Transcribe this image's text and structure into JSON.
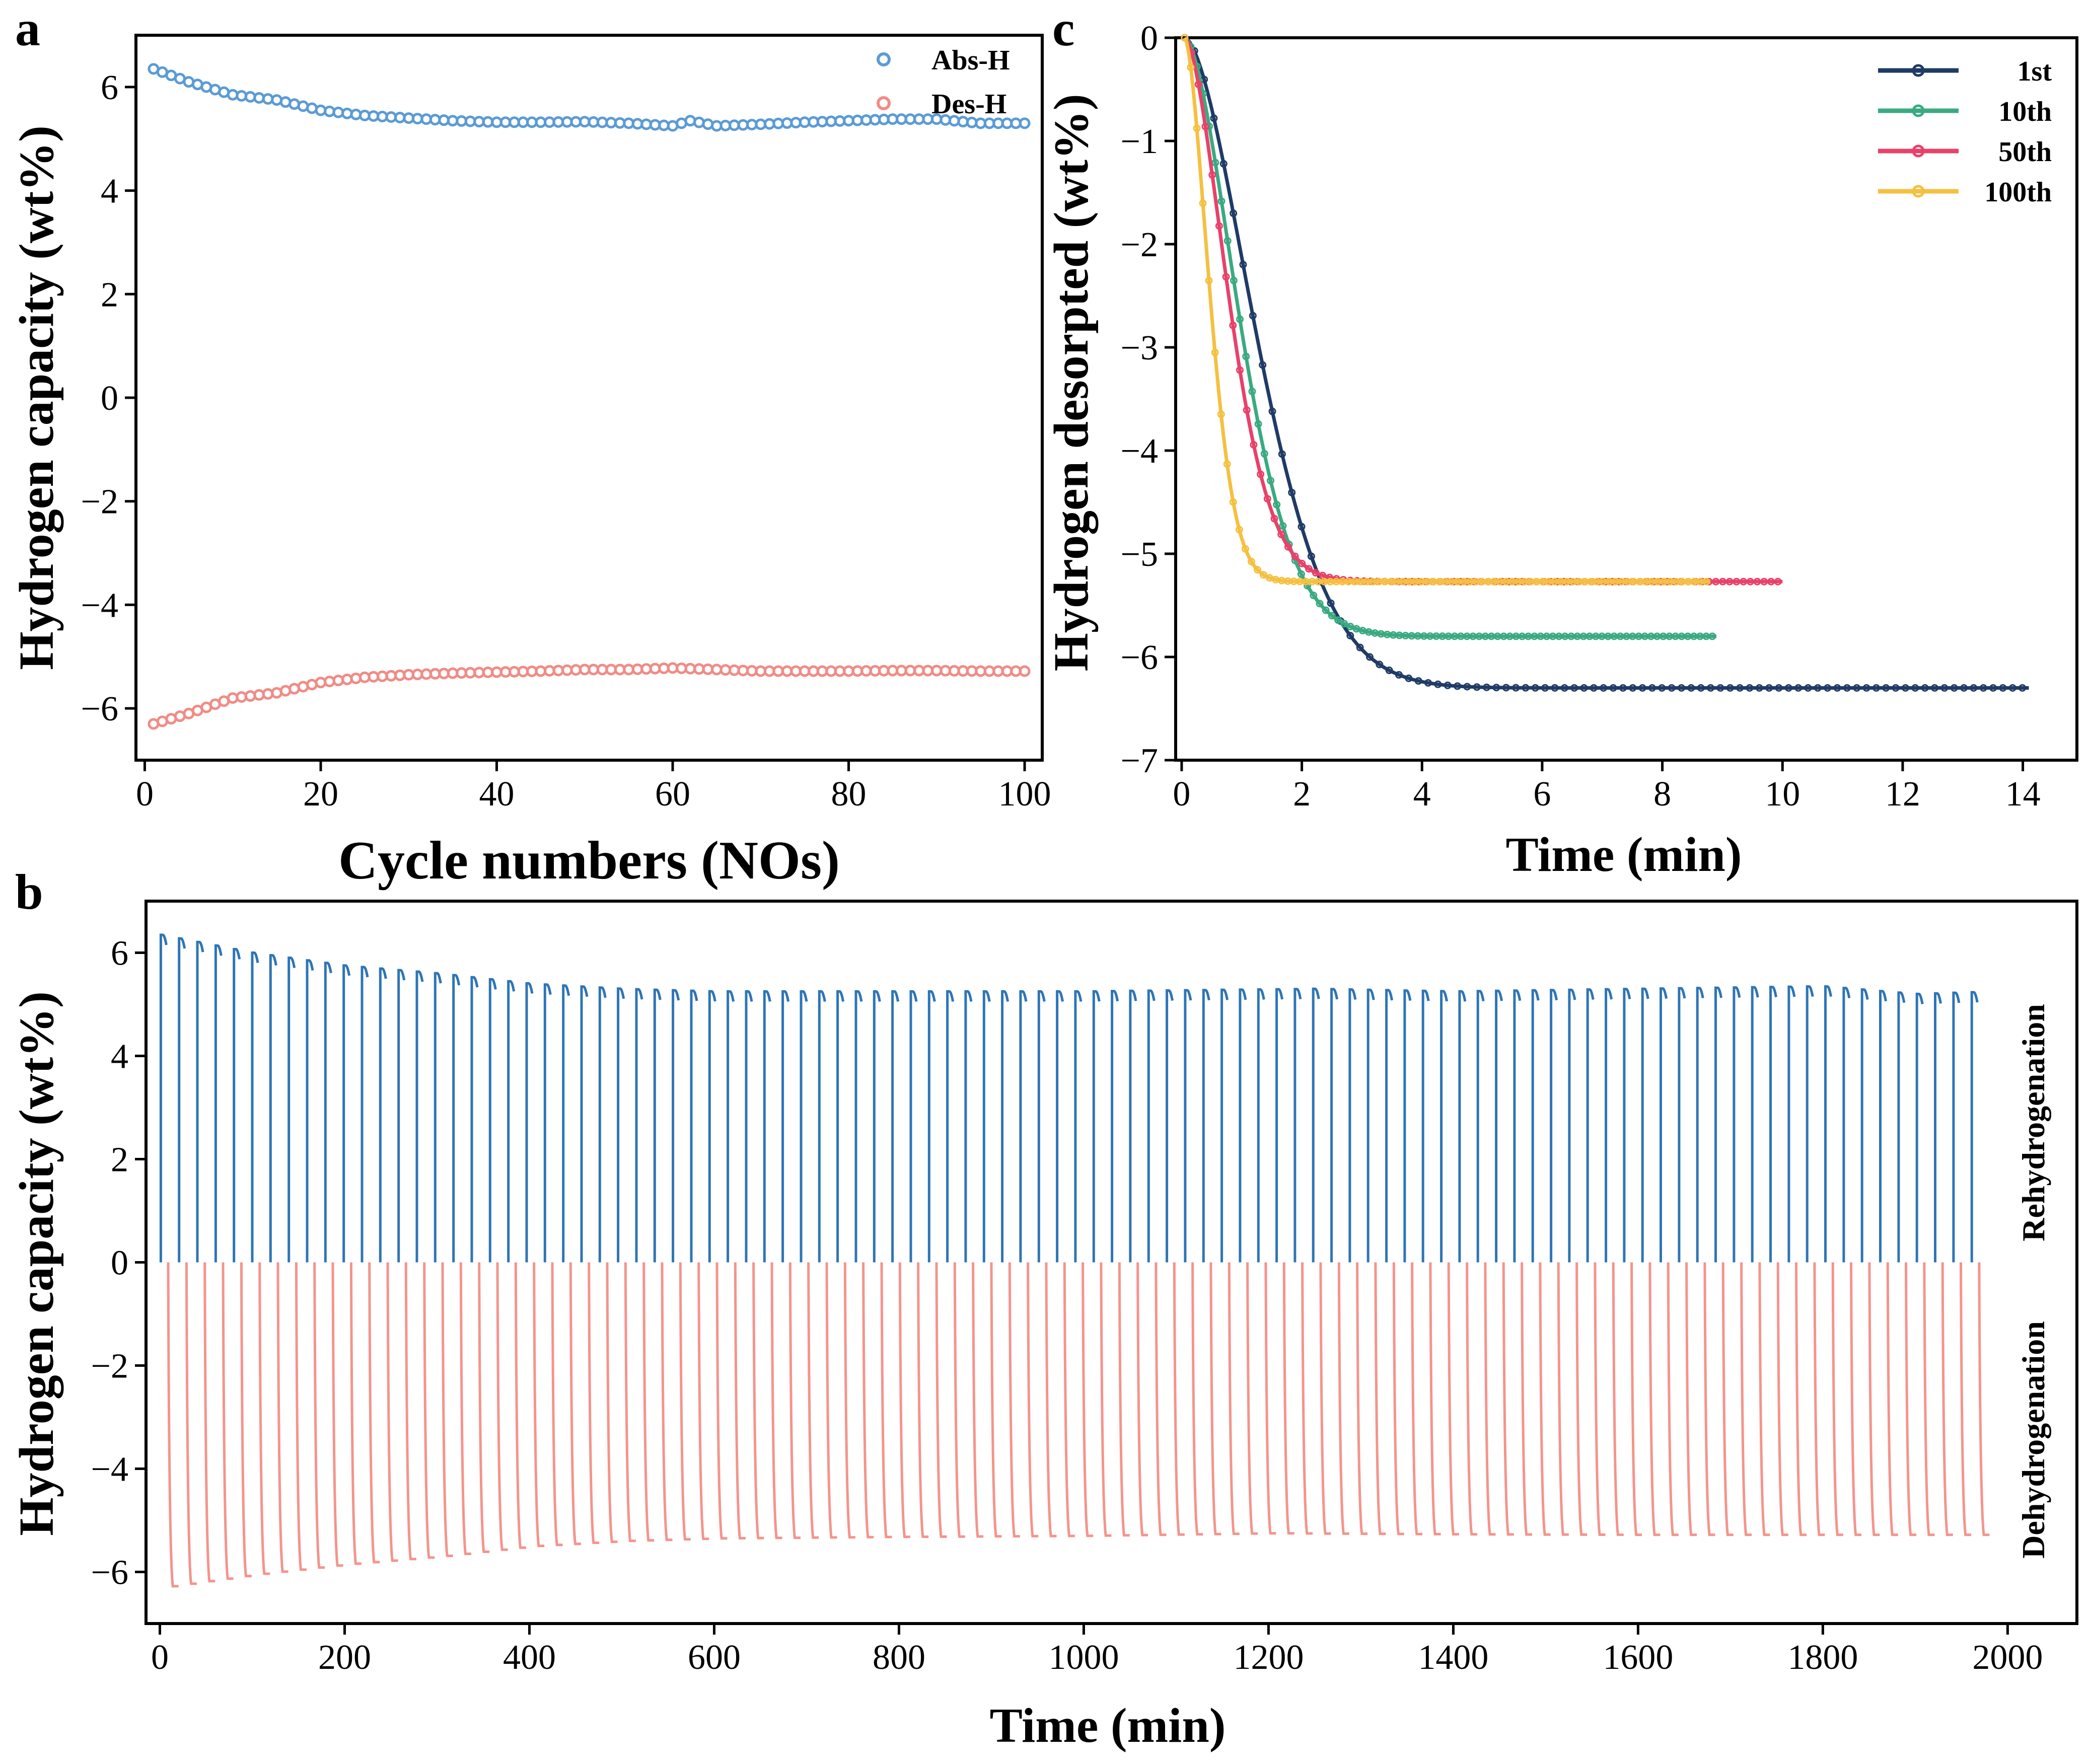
{
  "figure": {
    "panels": [
      "a",
      "b",
      "c"
    ]
  },
  "colors": {
    "abs": "#5b9bd5",
    "des": "#f08c86",
    "rehydro": "#2e75b6",
    "dehydro": "#f4948c",
    "c1st": "#1f3b66",
    "c10th": "#3aaa80",
    "c50th": "#e8416a",
    "c100th": "#f5c040"
  },
  "chart_data": [
    {
      "panel": "a",
      "type": "scatter",
      "xlabel": "Cycle numbers (NOs)",
      "ylabel": "Hydrogen capacity (wt%)",
      "xlim": [
        -1,
        102
      ],
      "ylim": [
        -7,
        7
      ],
      "xticks": [
        "0",
        "20",
        "40",
        "60",
        "80",
        "100"
      ],
      "yticks": [
        "−6",
        "−4",
        "−2",
        "0",
        "2",
        "4",
        "6"
      ],
      "series": [
        {
          "name": "Abs-H",
          "x_points": [
            1,
            5,
            10,
            15,
            20,
            25,
            30,
            35,
            40,
            45,
            50,
            55,
            60,
            62,
            65,
            70,
            75,
            80,
            85,
            90,
            95,
            100
          ],
          "values": [
            6.35,
            6.1,
            5.85,
            5.75,
            5.55,
            5.45,
            5.4,
            5.35,
            5.32,
            5.32,
            5.33,
            5.3,
            5.25,
            5.35,
            5.25,
            5.28,
            5.32,
            5.35,
            5.38,
            5.38,
            5.3,
            5.3
          ]
        },
        {
          "name": "Des-H",
          "x_points": [
            1,
            5,
            10,
            15,
            20,
            25,
            30,
            35,
            40,
            45,
            50,
            55,
            60,
            65,
            70,
            75,
            80,
            85,
            90,
            95,
            100
          ],
          "values": [
            -6.3,
            -6.1,
            -5.8,
            -5.7,
            -5.5,
            -5.4,
            -5.35,
            -5.32,
            -5.3,
            -5.28,
            -5.25,
            -5.25,
            -5.22,
            -5.25,
            -5.28,
            -5.28,
            -5.28,
            -5.27,
            -5.27,
            -5.28,
            -5.28
          ]
        }
      ]
    },
    {
      "panel": "b",
      "type": "line",
      "xlabel": "Time (min)",
      "ylabel": "Hydrogen capacity (wt%)",
      "xlim": [
        -15,
        2075
      ],
      "ylim": [
        -7,
        7
      ],
      "xticks": [
        "0",
        "200",
        "400",
        "600",
        "800",
        "1000",
        "1200",
        "1400",
        "1600",
        "1800",
        "2000"
      ],
      "yticks": [
        "−6",
        "−4",
        "−2",
        "0",
        "2",
        "4",
        "6"
      ],
      "cycles": 100,
      "cycle_period_min": 19.8,
      "series": [
        {
          "name": "Rehydrogenation",
          "x_points": [
            0,
            100,
            200,
            300,
            400,
            500,
            600,
            800,
            1000,
            1250,
            1400,
            1600,
            1800,
            1900,
            1990
          ],
          "values": [
            6.35,
            6.0,
            5.75,
            5.6,
            5.4,
            5.3,
            5.25,
            5.25,
            5.25,
            5.3,
            5.25,
            5.3,
            5.35,
            5.2,
            5.25
          ]
        },
        {
          "name": "Dehydrogenation",
          "x_points": [
            0,
            100,
            200,
            300,
            400,
            500,
            600,
            800,
            1000,
            1200,
            1400,
            1600,
            1800,
            2000
          ],
          "values": [
            -6.3,
            -6.05,
            -5.85,
            -5.7,
            -5.5,
            -5.4,
            -5.35,
            -5.32,
            -5.3,
            -5.25,
            -5.27,
            -5.28,
            -5.28,
            -5.28
          ]
        }
      ]
    },
    {
      "panel": "c",
      "type": "line",
      "xlabel": "Time (min)",
      "ylabel": "Hydrogen desorpted (wt%)",
      "xlim": [
        -0.1,
        14.9
      ],
      "ylim": [
        -7,
        0
      ],
      "xticks": [
        "0",
        "2",
        "4",
        "6",
        "8",
        "10",
        "12",
        "14"
      ],
      "yticks": [
        "0",
        "−1",
        "−2",
        "−3",
        "−4",
        "−5",
        "−6",
        "−7"
      ],
      "series": [
        {
          "name": "1st",
          "plateau": -6.3,
          "tau": 1.6,
          "x_end": 14.1
        },
        {
          "name": "10th",
          "plateau": -5.8,
          "tau": 1.2,
          "x_end": 8.9
        },
        {
          "name": "50th",
          "plateau": -5.27,
          "tau": 0.95,
          "x_end": 10.0
        },
        {
          "name": "100th",
          "plateau": -5.27,
          "tau": 0.55,
          "x_end": 8.8
        }
      ]
    }
  ],
  "labels": {
    "panel_a": "a",
    "panel_b": "b",
    "panel_c": "c",
    "rehydrogenation": "Rehydrogenation",
    "dehydrogenation": "Dehydrogenation"
  }
}
